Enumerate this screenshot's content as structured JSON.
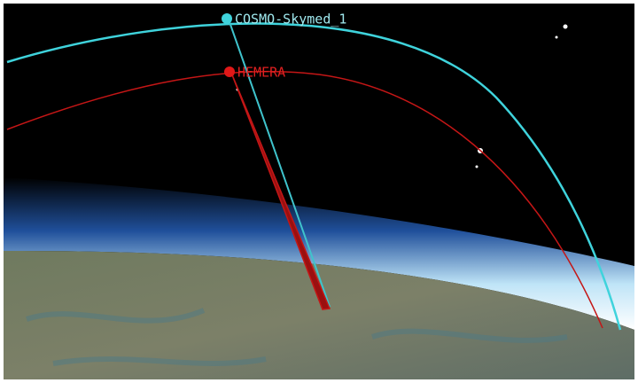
{
  "satellites": [
    {
      "label": "COSMO-Skymed_1"
    },
    {
      "label": "HEMERA"
    }
  ]
}
